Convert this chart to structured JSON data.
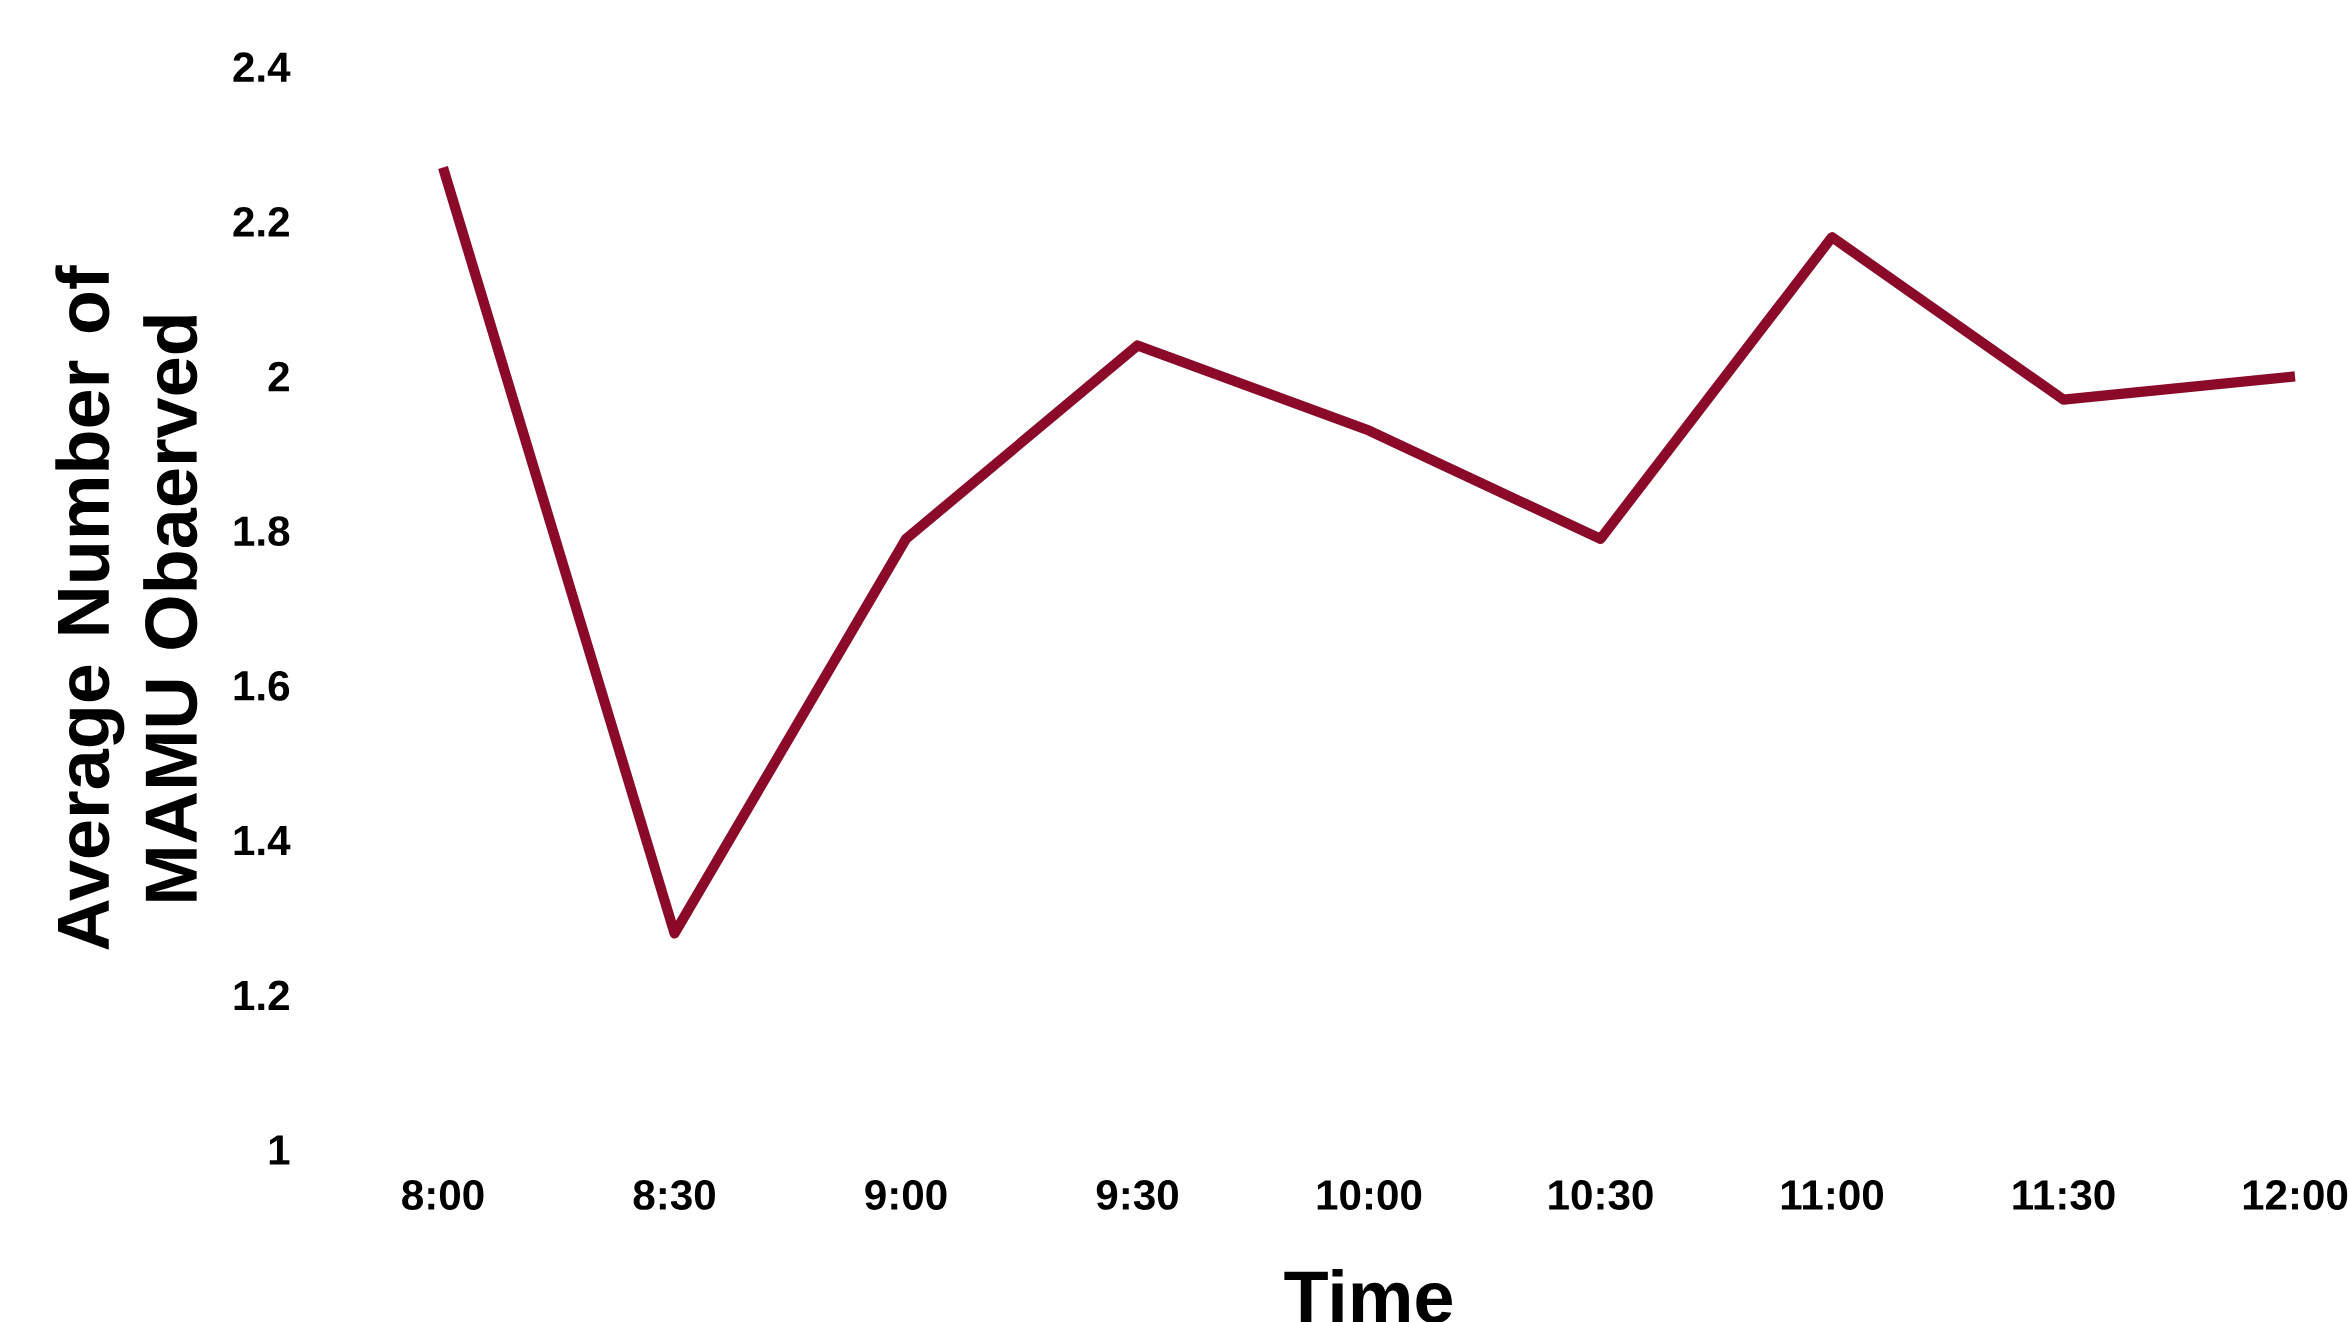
{
  "chart_data": {
    "type": "line",
    "xlabel": "Time",
    "ylabel": "Average Number of MAMU Obaerved",
    "categories": [
      "8:00",
      "8:30",
      "9:00",
      "9:30",
      "10:00",
      "10:30",
      "11:00",
      "11:30",
      "12:00"
    ],
    "series": [
      {
        "color": "#8b0a2a",
        "values": [
          2.27,
          1.28,
          1.79,
          2.04,
          1.93,
          1.79,
          2.18,
          1.97,
          2.0
        ]
      }
    ],
    "ylim": [
      1,
      2.4
    ],
    "yticks": [
      1,
      1.2,
      1.4,
      1.6,
      1.8,
      2,
      2.2,
      2.4
    ],
    "line_style": "solid"
  }
}
